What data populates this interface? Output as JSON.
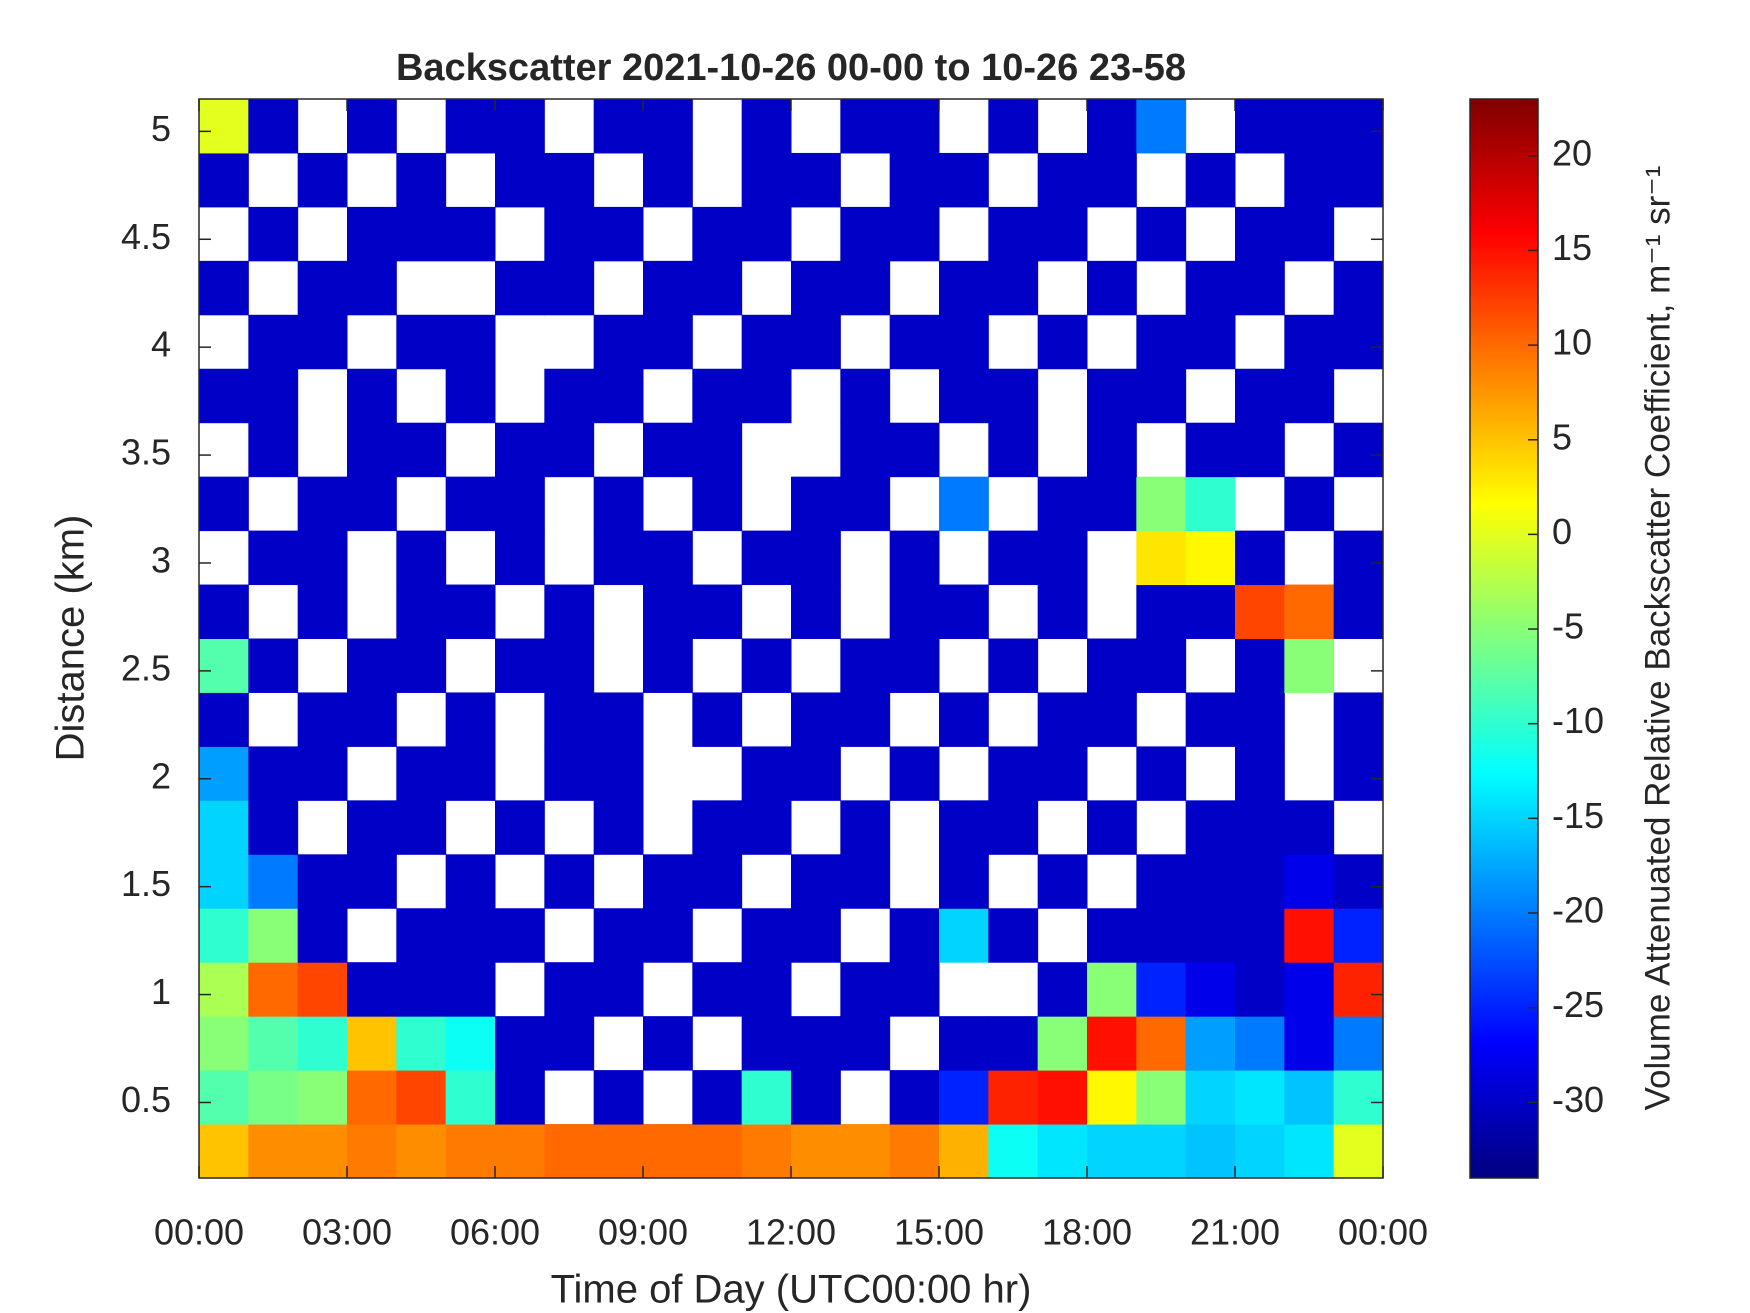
{
  "chart_data": {
    "type": "heatmap",
    "title": "Backscatter 2021-10-26 00-00 to 10-26 23-58",
    "x_label": "Time of Day (UTC00:00 hr)",
    "y_label": "Distance (km)",
    "colorbar_label": "Volume Attenuated Relative Backscatter Coefficient, m⁻¹ sr⁻¹",
    "colormap": "jet",
    "xlim": [
      0,
      24
    ],
    "ylim": [
      0.15,
      5.15
    ],
    "xticks": [
      {
        "value": 0,
        "label": "00:00"
      },
      {
        "value": 3,
        "label": "03:00"
      },
      {
        "value": 6,
        "label": "06:00"
      },
      {
        "value": 9,
        "label": "09:00"
      },
      {
        "value": 12,
        "label": "12:00"
      },
      {
        "value": 15,
        "label": "15:00"
      },
      {
        "value": 18,
        "label": "18:00"
      },
      {
        "value": 21,
        "label": "21:00"
      },
      {
        "value": 24,
        "label": "00:00"
      }
    ],
    "yticks": [
      0.5,
      1,
      1.5,
      2,
      2.5,
      3,
      3.5,
      4,
      4.5,
      5
    ],
    "clim": [
      -34,
      23
    ],
    "cticks": [
      -30,
      -25,
      -20,
      -15,
      -10,
      -5,
      0,
      5,
      10,
      15,
      20
    ],
    "xbins": [
      0,
      1,
      2,
      3,
      4,
      5,
      6,
      7,
      8,
      9,
      10,
      11,
      12,
      13,
      14,
      15,
      16,
      17,
      18,
      19,
      20,
      21,
      22,
      23,
      24
    ],
    "ybins": [
      0.15,
      0.4,
      0.65,
      0.9,
      1.15,
      1.4,
      1.65,
      1.9,
      2.15,
      2.4,
      2.65,
      2.9,
      3.15,
      3.4,
      3.65,
      3.9,
      4.15,
      4.4,
      4.65,
      4.9,
      5.15
    ],
    "z": [
      [
        5,
        8,
        8,
        9,
        8,
        9,
        9,
        10,
        10,
        10,
        10,
        9,
        8,
        8,
        9,
        6,
        -12,
        -14,
        -15,
        -15,
        -16,
        -15,
        -14,
        0
      ],
      [
        -8,
        -6,
        -5,
        10,
        12,
        -10,
        -30,
        null,
        -30,
        null,
        -30,
        -10,
        -30,
        null,
        -30,
        -25,
        14,
        15,
        2,
        -5,
        -15,
        -14,
        -16,
        -10
      ],
      [
        -5,
        -8,
        -10,
        5,
        -10,
        -12,
        -30,
        -30,
        null,
        -30,
        null,
        -30,
        -30,
        -30,
        null,
        -30,
        -30,
        -5,
        15,
        10,
        -18,
        -20,
        -28,
        -20
      ],
      [
        -3,
        10,
        12,
        -30,
        -30,
        -30,
        null,
        -30,
        -30,
        null,
        -30,
        -30,
        null,
        -30,
        -30,
        null,
        null,
        -30,
        -5,
        -25,
        -28,
        -30,
        -28,
        14
      ],
      [
        -10,
        -5,
        -30,
        null,
        -30,
        -30,
        -30,
        null,
        -30,
        -30,
        null,
        -30,
        -30,
        null,
        -30,
        -15,
        -30,
        null,
        -30,
        -30,
        -30,
        -30,
        15,
        -25
      ],
      [
        -15,
        -20,
        -30,
        -30,
        null,
        -30,
        null,
        -30,
        null,
        -30,
        -30,
        null,
        -30,
        -30,
        null,
        -30,
        null,
        -30,
        null,
        -30,
        -30,
        -30,
        -28,
        -30
      ],
      [
        -15,
        -30,
        null,
        -30,
        -30,
        null,
        -30,
        null,
        -30,
        null,
        -30,
        -30,
        null,
        -30,
        null,
        -30,
        -30,
        null,
        -30,
        null,
        -30,
        -30,
        -30,
        null
      ],
      [
        -18,
        -30,
        -30,
        null,
        -30,
        -30,
        null,
        -30,
        -30,
        null,
        null,
        -30,
        -30,
        null,
        -30,
        null,
        -30,
        -30,
        null,
        -30,
        null,
        -30,
        null,
        -30
      ],
      [
        -30,
        null,
        -30,
        -30,
        null,
        -30,
        null,
        -30,
        -30,
        null,
        -30,
        null,
        -30,
        -30,
        null,
        -30,
        null,
        -30,
        -30,
        null,
        -30,
        -30,
        null,
        -30
      ],
      [
        -8,
        -30,
        null,
        -30,
        -30,
        null,
        -30,
        -30,
        null,
        -30,
        null,
        -30,
        null,
        -30,
        -30,
        null,
        -30,
        null,
        -30,
        -30,
        null,
        -30,
        -5,
        null
      ],
      [
        -30,
        null,
        -30,
        null,
        -30,
        -30,
        null,
        -30,
        null,
        -30,
        -30,
        null,
        -30,
        null,
        -30,
        -30,
        null,
        -30,
        null,
        -30,
        -30,
        12,
        10,
        -30
      ],
      [
        null,
        -30,
        -30,
        null,
        -30,
        null,
        -30,
        null,
        -30,
        -30,
        null,
        -30,
        -30,
        null,
        -30,
        null,
        -30,
        -30,
        null,
        3,
        2,
        -30,
        null,
        -30
      ],
      [
        -30,
        null,
        -30,
        -30,
        null,
        -30,
        -30,
        null,
        -30,
        null,
        -30,
        null,
        -30,
        -30,
        null,
        -20,
        null,
        -30,
        -30,
        -5,
        -10,
        null,
        -30,
        null
      ],
      [
        null,
        -30,
        null,
        -30,
        -30,
        null,
        -30,
        -30,
        null,
        -30,
        -30,
        null,
        null,
        -30,
        -30,
        null,
        -30,
        null,
        -30,
        null,
        -30,
        -30,
        null,
        -30
      ],
      [
        -30,
        -30,
        null,
        -30,
        null,
        -30,
        null,
        -30,
        -30,
        null,
        -30,
        -30,
        null,
        -30,
        null,
        -30,
        -30,
        null,
        -30,
        -30,
        null,
        -30,
        -30,
        null
      ],
      [
        null,
        -30,
        -30,
        null,
        -30,
        -30,
        null,
        null,
        -30,
        -30,
        null,
        -30,
        -30,
        null,
        -30,
        -30,
        null,
        -30,
        null,
        -30,
        -30,
        null,
        -30,
        -30
      ],
      [
        -30,
        null,
        -30,
        -30,
        null,
        null,
        -30,
        -30,
        null,
        -30,
        -30,
        null,
        -30,
        -30,
        null,
        -30,
        -30,
        null,
        -30,
        null,
        -30,
        -30,
        null,
        -30
      ],
      [
        null,
        -30,
        null,
        -30,
        -30,
        -30,
        null,
        -30,
        -30,
        null,
        -30,
        -30,
        null,
        -30,
        -30,
        null,
        -30,
        -30,
        null,
        -30,
        null,
        -30,
        -30,
        null
      ],
      [
        -30,
        null,
        -30,
        null,
        -30,
        null,
        -30,
        -30,
        null,
        -30,
        null,
        -30,
        -30,
        null,
        -30,
        -30,
        null,
        -30,
        -30,
        null,
        -30,
        null,
        -30,
        -30
      ],
      [
        0,
        -30,
        null,
        -30,
        null,
        -30,
        -30,
        null,
        -30,
        -30,
        null,
        -30,
        null,
        -30,
        -30,
        null,
        -30,
        null,
        -30,
        -20,
        null,
        -30,
        -30,
        -30
      ]
    ]
  }
}
